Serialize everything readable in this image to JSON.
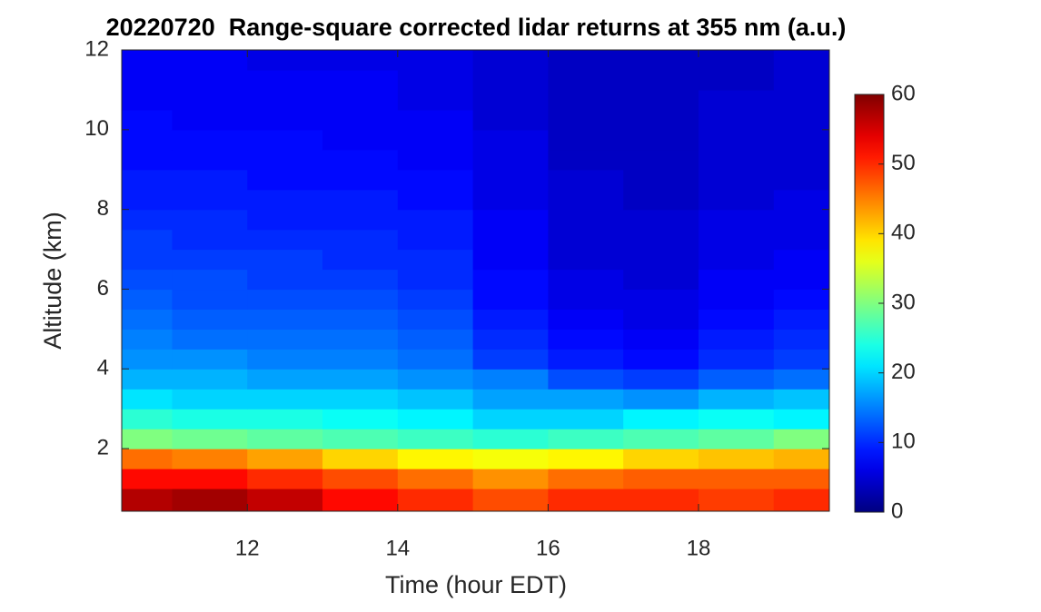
{
  "chart_data": {
    "type": "heatmap",
    "title": "20220720  Range-square corrected lidar returns at 355 nm (a.u.)",
    "x_label": "Time (hour EDT)",
    "y_label": "Altitude (km)",
    "x": [
      10.5,
      11.5,
      12.5,
      13.5,
      14.5,
      15.5,
      16.5,
      17.5,
      18.5,
      19.5
    ],
    "y": [
      0.75,
      1.25,
      1.75,
      2.25,
      2.75,
      3.25,
      3.75,
      4.25,
      4.75,
      5.25,
      5.75,
      6.25,
      6.75,
      7.25,
      7.75,
      8.25,
      8.75,
      9.25,
      9.75,
      10.25,
      10.75,
      11.25,
      11.75
    ],
    "values": [
      [
        57,
        58,
        56,
        52,
        50,
        48,
        50,
        50,
        49,
        50
      ],
      [
        52,
        52,
        50,
        48,
        46,
        44,
        46,
        47,
        47,
        47
      ],
      [
        46,
        45,
        43,
        40,
        38,
        37,
        38,
        40,
        41,
        42
      ],
      [
        30,
        29,
        28,
        27,
        26,
        25,
        26,
        27,
        28,
        30
      ],
      [
        25,
        24,
        24,
        23,
        22,
        20,
        20,
        22,
        23,
        22
      ],
      [
        21,
        20,
        20,
        20,
        19,
        17,
        17,
        16,
        18,
        19
      ],
      [
        18,
        18,
        17,
        17,
        16,
        15,
        12,
        11,
        13,
        14
      ],
      [
        16,
        16,
        15,
        15,
        14,
        11,
        9,
        8,
        10,
        11
      ],
      [
        15,
        14,
        14,
        14,
        13,
        10,
        8,
        7,
        9,
        10
      ],
      [
        14,
        13,
        13,
        13,
        12,
        9,
        7,
        6,
        8,
        9
      ],
      [
        13,
        12,
        12,
        12,
        11,
        8,
        6,
        6,
        7,
        8
      ],
      [
        12,
        12,
        11,
        11,
        10,
        8,
        6,
        5,
        7,
        7
      ],
      [
        11,
        11,
        11,
        10,
        10,
        7,
        5,
        5,
        6,
        7
      ],
      [
        11,
        10,
        10,
        10,
        9,
        7,
        5,
        5,
        6,
        6
      ],
      [
        10,
        10,
        9,
        9,
        9,
        7,
        5,
        5,
        6,
        6
      ],
      [
        9,
        9,
        9,
        9,
        8,
        6,
        5,
        4,
        5,
        6
      ],
      [
        9,
        9,
        8,
        8,
        8,
        6,
        5,
        4,
        5,
        5
      ],
      [
        8,
        8,
        8,
        8,
        7,
        6,
        4,
        4,
        5,
        5
      ],
      [
        8,
        8,
        8,
        7,
        7,
        6,
        4,
        4,
        5,
        5
      ],
      [
        8,
        7,
        7,
        7,
        7,
        5,
        4,
        4,
        5,
        5
      ],
      [
        7,
        7,
        7,
        7,
        6,
        5,
        4,
        4,
        5,
        5
      ],
      [
        7,
        7,
        7,
        7,
        6,
        5,
        4,
        4,
        4,
        5
      ],
      [
        7,
        7,
        6,
        6,
        6,
        5,
        4,
        4,
        4,
        5
      ]
    ],
    "xlim": [
      10.33,
      19.74
    ],
    "xticks": [
      12,
      14,
      16,
      18
    ],
    "ylim": [
      0.43,
      12
    ],
    "yticks": [
      2,
      4,
      6,
      8,
      10,
      12
    ],
    "colormap": "jet",
    "clim": [
      0,
      60
    ],
    "cticks": [
      0,
      10,
      20,
      30,
      40,
      50,
      60
    ]
  }
}
